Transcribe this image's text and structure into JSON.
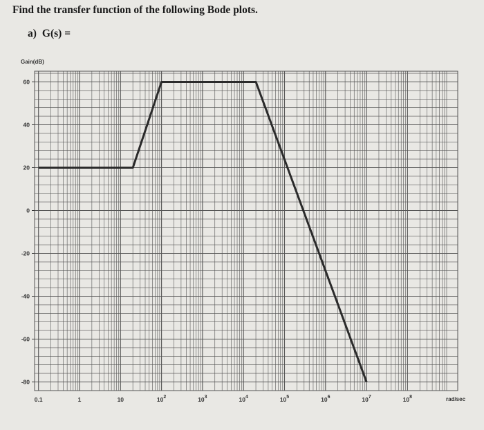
{
  "question": {
    "title": "Find the transfer function of the following Bode plots.",
    "part_label": "a)",
    "expression": "G(s) ="
  },
  "chart_data": {
    "type": "line",
    "title": "",
    "xlabel": "rad/sec",
    "ylabel": "Gain(dB)",
    "x_scale": "log",
    "xlim": [
      0.1,
      1000000000
    ],
    "ylim": [
      -80,
      60
    ],
    "grid": true,
    "x_ticks": [
      {
        "base": "0.1",
        "exp": ""
      },
      {
        "base": "1",
        "exp": ""
      },
      {
        "base": "10",
        "exp": ""
      },
      {
        "base": "10",
        "exp": "2"
      },
      {
        "base": "10",
        "exp": "3"
      },
      {
        "base": "10",
        "exp": "4"
      },
      {
        "base": "10",
        "exp": "5"
      },
      {
        "base": "10",
        "exp": "6"
      },
      {
        "base": "10",
        "exp": "7"
      },
      {
        "base": "10",
        "exp": "8"
      }
    ],
    "y_ticks": [
      "60",
      "40",
      "20",
      "0",
      "-20",
      "-40",
      "-60",
      "-80"
    ],
    "series": [
      {
        "x": [
          0.1,
          20,
          100,
          20000,
          10000000
        ],
        "y": [
          20,
          20,
          60,
          60,
          -80
        ]
      }
    ],
    "colors": {
      "line": "#2b2b2b",
      "grid": "#555555",
      "paper": "#e9e8e4"
    }
  }
}
